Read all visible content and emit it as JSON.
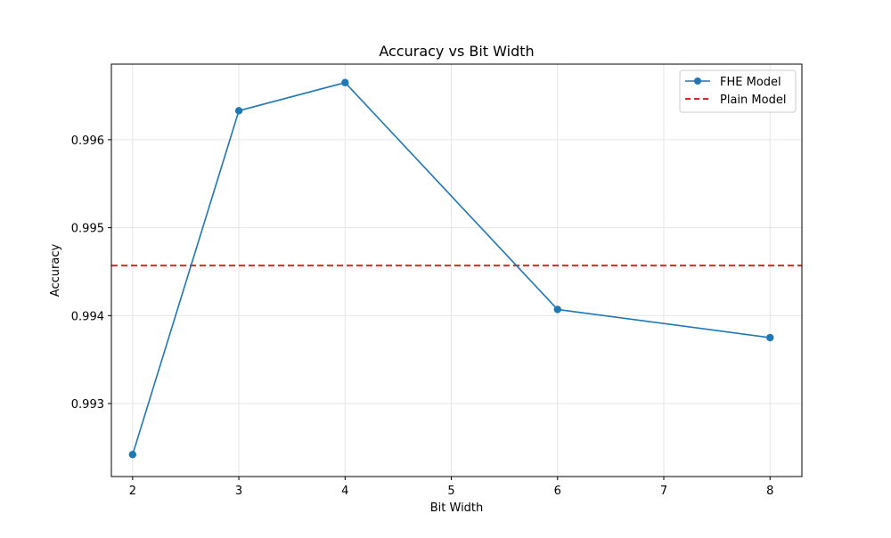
{
  "chart_data": {
    "type": "line",
    "title": "Accuracy vs Bit Width",
    "xlabel": "Bit Width",
    "ylabel": "Accuracy",
    "xlim": [
      1.8,
      8.3
    ],
    "ylim": [
      0.99217,
      0.99686
    ],
    "x_ticks": [
      2,
      3,
      4,
      5,
      6,
      7,
      8
    ],
    "x_tick_labels": [
      "2",
      "3",
      "4",
      "5",
      "6",
      "7",
      "8"
    ],
    "y_ticks": [
      0.993,
      0.994,
      0.995,
      0.996
    ],
    "y_tick_labels": [
      "0.993",
      "0.994",
      "0.995",
      "0.996"
    ],
    "grid": true,
    "legend_position": "top-right",
    "series": [
      {
        "name": "FHE Model",
        "style": "solid-with-circle-markers",
        "color": "#1f77b4",
        "x": [
          2,
          3,
          4,
          6,
          8
        ],
        "y": [
          0.99242,
          0.99633,
          0.99665,
          0.99407,
          0.99375
        ]
      }
    ],
    "reference_lines": [
      {
        "name": "Plain Model",
        "orientation": "horizontal",
        "style": "dashed",
        "color": "#d62728",
        "y": 0.99457
      }
    ]
  }
}
